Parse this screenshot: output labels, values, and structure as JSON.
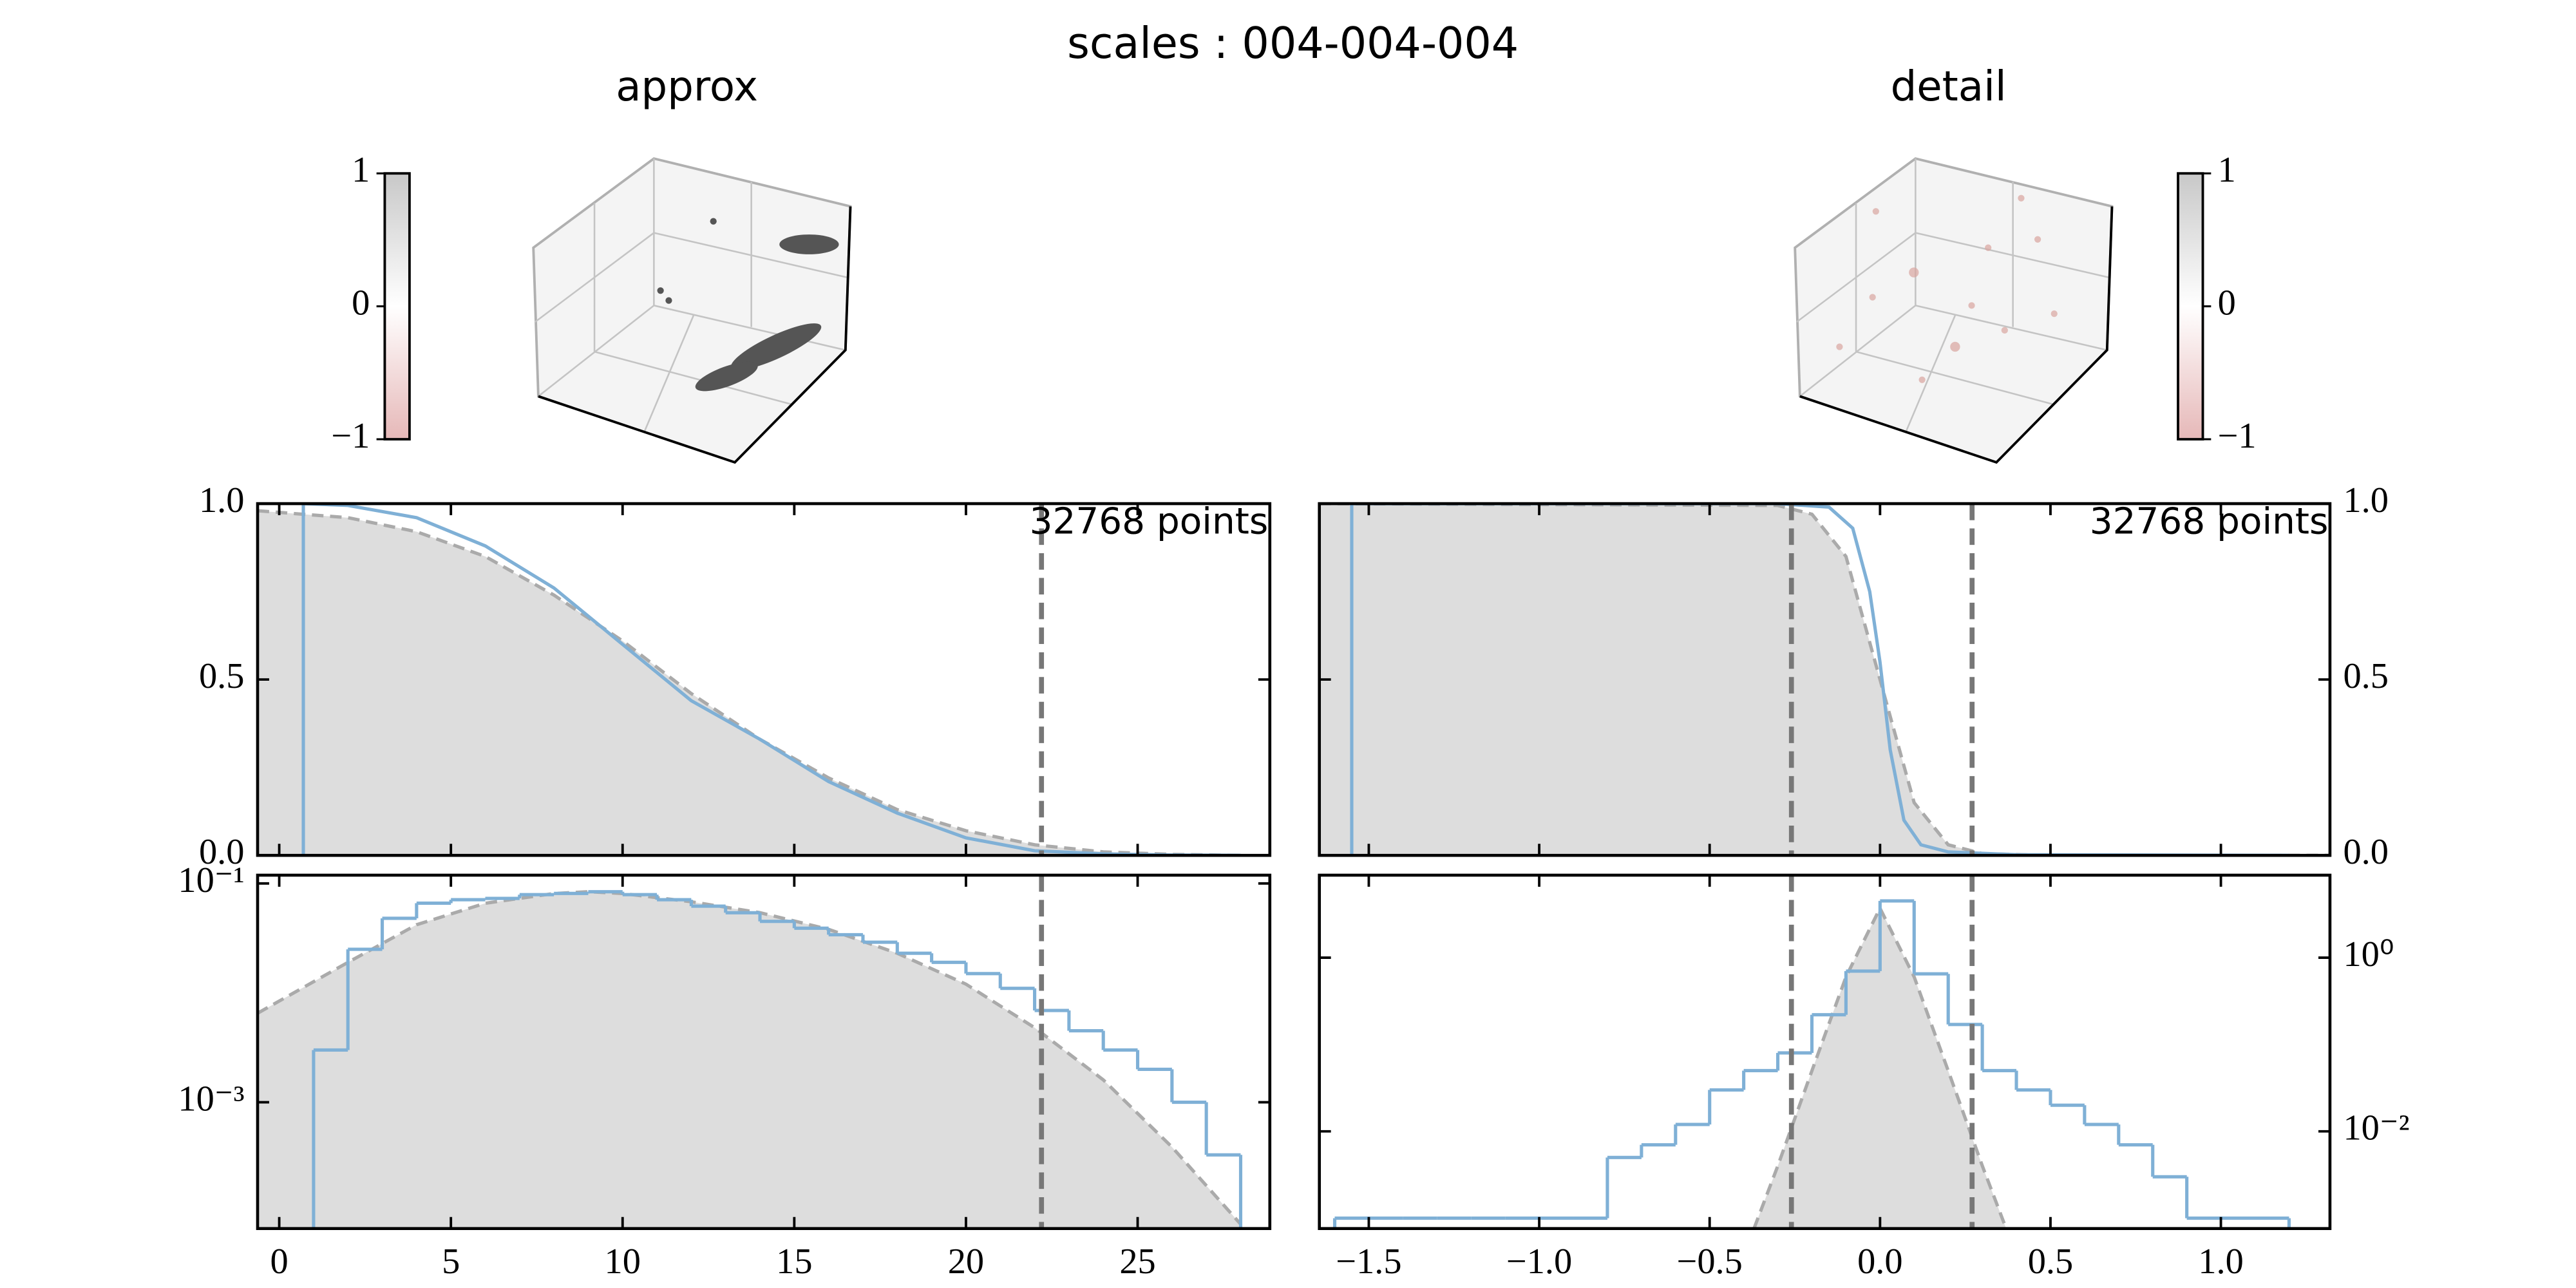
{
  "title": "scales : 004-004-004",
  "chart_data": [
    {
      "type": "scatter3d",
      "title": "approx",
      "clim": [
        -1,
        1
      ],
      "cticks": [
        1,
        0,
        {
          "value": -1,
          "label": "−1"
        }
      ],
      "colorbar": "left"
    },
    {
      "type": "scatter3d",
      "title": "detail",
      "clim": [
        -1,
        1
      ],
      "cticks": [
        1,
        0,
        {
          "value": -1,
          "label": "−1"
        }
      ],
      "colorbar": "right"
    },
    {
      "type": "line",
      "xlim": [
        -0.63,
        28.85
      ],
      "ylim": [
        0,
        1
      ],
      "yticks": [
        {
          "value": 0,
          "label": "0.0"
        },
        0.5,
        {
          "value": 1,
          "label": "1.0"
        }
      ],
      "yaxis": "left",
      "annotation": "32768 points",
      "vlines": [
        22.2
      ],
      "series": [
        {
          "color": "#aaaaaa",
          "fill": "#dddddd",
          "dash": true,
          "x": [
            -0.63,
            2,
            4,
            6,
            8,
            10,
            12,
            14,
            16,
            18,
            20,
            22,
            24,
            26,
            28
          ],
          "values": [
            0.98,
            0.96,
            0.92,
            0.85,
            0.74,
            0.61,
            0.46,
            0.33,
            0.22,
            0.13,
            0.07,
            0.03,
            0.01,
            0.003,
            0
          ]
        },
        {
          "color": "#7fb0d6",
          "x": [
            0.7,
            0.7,
            2,
            4,
            6,
            8,
            10,
            12,
            14,
            16,
            18,
            20,
            22,
            24,
            26,
            28
          ],
          "values": [
            0,
            1,
            0.995,
            0.96,
            0.88,
            0.76,
            0.6,
            0.44,
            0.33,
            0.21,
            0.12,
            0.05,
            0.013,
            0.004,
            0.001,
            0
          ]
        }
      ]
    },
    {
      "type": "histogram",
      "xlim": [
        -0.63,
        28.85
      ],
      "ylim": [
        7e-05,
        0.119
      ],
      "yscale": "log",
      "yticks": [
        {
          "value": 0.1,
          "label": "10⁻¹"
        },
        {
          "value": 0.001,
          "label": "10⁻³"
        }
      ],
      "yaxis": "left",
      "xticks": [
        0,
        5,
        10,
        15,
        20,
        25
      ],
      "vlines": [
        22.2
      ],
      "series": [
        {
          "color": "#aaaaaa",
          "fill": "#dddddd",
          "dash": true,
          "x": [
            -0.63,
            2,
            4,
            6,
            8,
            9,
            10,
            12,
            14,
            16,
            18,
            20,
            22,
            24,
            26,
            28
          ],
          "values": [
            0.0065,
            0.019,
            0.042,
            0.066,
            0.081,
            0.084,
            0.081,
            0.068,
            0.054,
            0.038,
            0.023,
            0.012,
            0.0048,
            0.0016,
            0.00039,
            7.7e-05
          ]
        },
        {
          "color": "#7fb0d6",
          "bins": [
            1,
            2,
            3,
            4,
            5,
            6,
            7,
            8,
            9,
            10,
            11,
            12,
            13,
            14,
            15,
            16,
            17,
            18,
            19,
            20,
            21,
            22,
            23,
            24,
            25,
            26,
            27,
            28
          ],
          "values": [
            0.003,
            0.025,
            0.048,
            0.066,
            0.071,
            0.073,
            0.079,
            0.081,
            0.084,
            0.079,
            0.071,
            0.062,
            0.054,
            0.045,
            0.039,
            0.034,
            0.029,
            0.023,
            0.019,
            0.015,
            0.011,
            0.0069,
            0.0045,
            0.003,
            0.002,
            0.001,
            0.00033
          ]
        }
      ]
    },
    {
      "type": "line",
      "xlim": [
        -1.645,
        1.32
      ],
      "ylim": [
        0,
        1
      ],
      "yticks": [
        {
          "value": 0,
          "label": "0.0"
        },
        0.5,
        {
          "value": 1,
          "label": "1.0"
        }
      ],
      "yaxis": "right",
      "annotation": "32768 points",
      "vlines": [
        -0.26,
        0.27
      ],
      "series": [
        {
          "color": "#aaaaaa",
          "fill": "#dddddd",
          "dash": true,
          "x": [
            -1.645,
            -0.3,
            -0.2,
            -0.1,
            0,
            0.1,
            0.2,
            0.3,
            0.5,
            1.32
          ],
          "values": [
            1,
            0.995,
            0.97,
            0.85,
            0.5,
            0.15,
            0.03,
            0.005,
            0,
            0
          ]
        },
        {
          "color": "#7fb0d6",
          "x": [
            -1.55,
            -1.55,
            -0.3,
            -0.15,
            -0.08,
            -0.03,
            0,
            0.03,
            0.07,
            0.12,
            0.2,
            0.4,
            1.2
          ],
          "values": [
            0,
            1,
            1,
            0.99,
            0.93,
            0.75,
            0.55,
            0.3,
            0.1,
            0.03,
            0.01,
            0.002,
            0
          ]
        }
      ]
    },
    {
      "type": "histogram",
      "xlim": [
        -1.645,
        1.32
      ],
      "ylim": [
        0.00076,
        8.9
      ],
      "yscale": "log",
      "yticks": [
        {
          "value": 1,
          "label": "10⁰"
        },
        {
          "value": 0.01,
          "label": "10⁻²"
        }
      ],
      "yaxis": "right",
      "xticks": [
        {
          "value": -1.5,
          "label": "−1.5"
        },
        {
          "value": -1,
          "label": "−1.0"
        },
        {
          "value": -0.5,
          "label": "−0.5"
        },
        {
          "value": 0,
          "label": "0.0"
        },
        0.5,
        {
          "value": 1,
          "label": "1.0"
        }
      ],
      "vlines": [
        -0.26,
        0.27
      ],
      "series": [
        {
          "color": "#aaaaaa",
          "fill": "#dddddd",
          "dash": true,
          "x": [
            -0.37,
            -0.3,
            -0.2,
            -0.1,
            0,
            0.1,
            0.2,
            0.3,
            0.37
          ],
          "values": [
            0.00076,
            0.004,
            0.05,
            0.6,
            3.7,
            0.6,
            0.05,
            0.004,
            0.00076
          ]
        },
        {
          "color": "#7fb0d6",
          "bins": [
            -1.6,
            -1.5,
            -1.4,
            -1.3,
            -1.2,
            -1.1,
            -1.0,
            -0.9,
            -0.8,
            -0.7,
            -0.6,
            -0.5,
            -0.4,
            -0.3,
            -0.2,
            -0.1,
            0,
            0.1,
            0.2,
            0.3,
            0.4,
            0.5,
            0.6,
            0.7,
            0.8,
            0.9,
            1.0,
            1.1,
            1.2
          ],
          "values": [
            0.001,
            0.001,
            0.001,
            0.001,
            0.001,
            0.001,
            0.001,
            0.001,
            0.005,
            0.007,
            0.012,
            0.03,
            0.05,
            0.08,
            0.22,
            0.7,
            4.5,
            0.65,
            0.17,
            0.05,
            0.03,
            0.02,
            0.012,
            0.007,
            0.003,
            0.001,
            0.001,
            0.001
          ]
        }
      ]
    }
  ]
}
